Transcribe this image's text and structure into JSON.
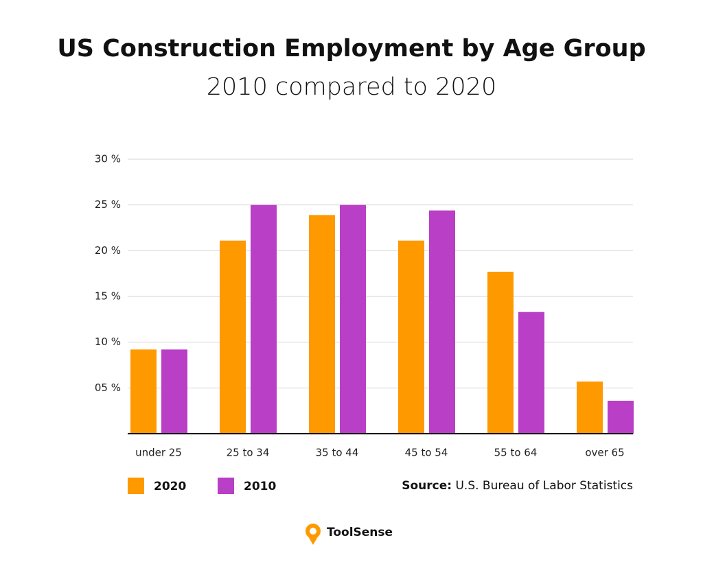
{
  "chart_data": {
    "type": "bar",
    "title": "US Construction Employment by Age Group",
    "subtitle": "2010 compared to 2020",
    "categories": [
      "under 25",
      "25 to 34",
      "35 to 44",
      "45 to 54",
      "55 to 64",
      "over 65"
    ],
    "series": [
      {
        "name": "2020",
        "color": "#ff9900",
        "values": [
          9.2,
          21.1,
          23.9,
          21.1,
          17.7,
          5.7
        ]
      },
      {
        "name": "2010",
        "color": "#b83fc6",
        "values": [
          9.2,
          25,
          25,
          24.4,
          13.3,
          3.6
        ]
      }
    ],
    "ylim": [
      0,
      30
    ],
    "yticks": [
      {
        "value": 5,
        "label": "05 %"
      },
      {
        "value": 10,
        "label": "10 %"
      },
      {
        "value": 15,
        "label": "15 %"
      },
      {
        "value": 20,
        "label": "20 %"
      },
      {
        "value": 25,
        "label": "25 %"
      },
      {
        "value": 30,
        "label": "30 %"
      }
    ],
    "grid": true,
    "source_label": "Source:",
    "source_text": "U.S. Bureau of Labor Statistics",
    "brand": "ToolSense"
  }
}
